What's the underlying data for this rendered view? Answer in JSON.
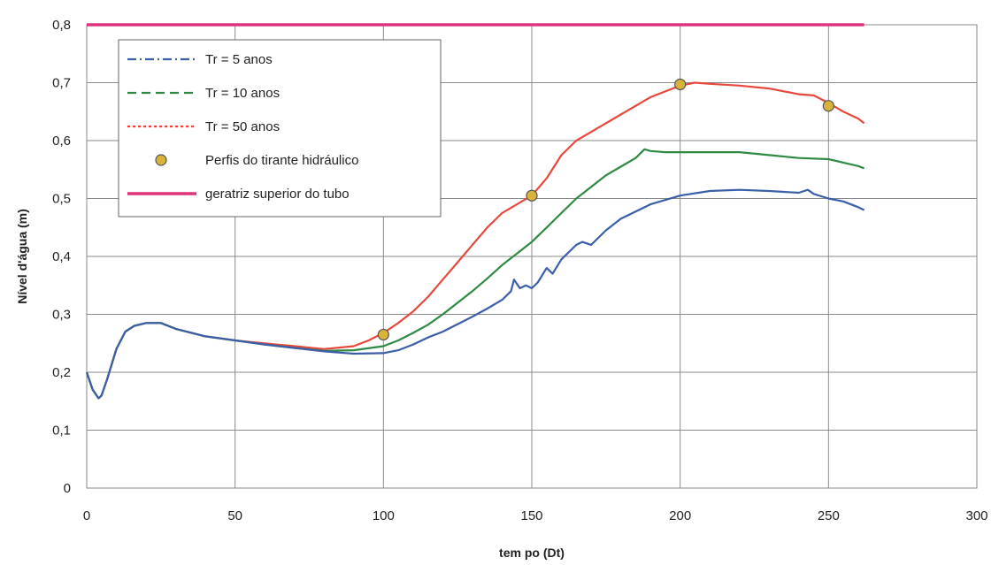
{
  "chart_data": {
    "type": "line",
    "title": "",
    "xlabel": "tem po (Dt)",
    "ylabel": "Nível d'água (m)",
    "xlim": [
      0,
      300
    ],
    "ylim": [
      0,
      0.8
    ],
    "x_ticks": [
      0,
      50,
      100,
      150,
      200,
      250,
      300
    ],
    "y_ticks": [
      0,
      0.1,
      0.2,
      0.3,
      0.4,
      0.5,
      0.6,
      0.7,
      0.8
    ],
    "x_tick_labels": [
      "0",
      "50",
      "100",
      "150",
      "200",
      "250",
      "300"
    ],
    "y_tick_labels": [
      "0",
      "0,1",
      "0,2",
      "0,3",
      "0,4",
      "0,5",
      "0,6",
      "0,7",
      "0,8"
    ],
    "grid": true,
    "legend_position": "top-left",
    "series": [
      {
        "name": "Tr = 5 anos",
        "color": "#3a5fa8",
        "style": "dash-dot",
        "x": [
          0,
          2,
          4,
          5,
          7,
          10,
          13,
          16,
          20,
          25,
          30,
          40,
          50,
          60,
          70,
          80,
          90,
          100,
          105,
          110,
          115,
          120,
          125,
          130,
          135,
          140,
          143,
          144,
          146,
          148,
          150,
          152,
          155,
          157,
          160,
          163,
          165,
          167,
          170,
          175,
          180,
          190,
          200,
          210,
          220,
          230,
          240,
          243,
          245,
          250,
          255,
          260,
          262
        ],
        "y": [
          0.2,
          0.17,
          0.155,
          0.16,
          0.19,
          0.24,
          0.27,
          0.28,
          0.285,
          0.285,
          0.275,
          0.262,
          0.255,
          0.248,
          0.242,
          0.236,
          0.232,
          0.233,
          0.238,
          0.248,
          0.26,
          0.27,
          0.283,
          0.296,
          0.31,
          0.325,
          0.34,
          0.36,
          0.345,
          0.35,
          0.345,
          0.355,
          0.38,
          0.37,
          0.395,
          0.41,
          0.42,
          0.425,
          0.42,
          0.445,
          0.465,
          0.49,
          0.505,
          0.513,
          0.515,
          0.513,
          0.51,
          0.515,
          0.508,
          0.5,
          0.495,
          0.485,
          0.48
        ]
      },
      {
        "name": "Tr = 10 anos",
        "color": "#2f8a44",
        "style": "dashed",
        "x": [
          0,
          2,
          4,
          5,
          7,
          10,
          13,
          16,
          20,
          25,
          30,
          40,
          50,
          60,
          70,
          80,
          90,
          100,
          105,
          110,
          115,
          120,
          125,
          130,
          135,
          140,
          145,
          150,
          155,
          160,
          165,
          170,
          175,
          180,
          185,
          188,
          190,
          195,
          200,
          210,
          220,
          230,
          240,
          250,
          255,
          260,
          262
        ],
        "y": [
          0.2,
          0.17,
          0.155,
          0.16,
          0.19,
          0.24,
          0.27,
          0.28,
          0.285,
          0.285,
          0.275,
          0.262,
          0.255,
          0.248,
          0.242,
          0.237,
          0.238,
          0.245,
          0.255,
          0.268,
          0.282,
          0.3,
          0.32,
          0.34,
          0.362,
          0.385,
          0.405,
          0.425,
          0.45,
          0.475,
          0.5,
          0.52,
          0.54,
          0.555,
          0.57,
          0.585,
          0.582,
          0.58,
          0.58,
          0.58,
          0.58,
          0.575,
          0.57,
          0.568,
          0.562,
          0.556,
          0.552
        ]
      },
      {
        "name": "Tr = 50 anos",
        "color": "#e8483c",
        "style": "dotted",
        "x": [
          0,
          2,
          4,
          5,
          7,
          10,
          13,
          16,
          20,
          25,
          30,
          40,
          50,
          60,
          70,
          80,
          90,
          95,
          100,
          105,
          110,
          115,
          120,
          125,
          130,
          135,
          140,
          145,
          150,
          155,
          160,
          165,
          170,
          180,
          190,
          200,
          205,
          210,
          220,
          230,
          240,
          245,
          250,
          255,
          260,
          262
        ],
        "y": [
          0.2,
          0.17,
          0.155,
          0.16,
          0.19,
          0.24,
          0.27,
          0.28,
          0.285,
          0.285,
          0.275,
          0.262,
          0.255,
          0.25,
          0.245,
          0.24,
          0.245,
          0.255,
          0.268,
          0.285,
          0.305,
          0.33,
          0.36,
          0.39,
          0.42,
          0.45,
          0.475,
          0.49,
          0.505,
          0.535,
          0.575,
          0.6,
          0.615,
          0.645,
          0.675,
          0.695,
          0.7,
          0.698,
          0.695,
          0.69,
          0.68,
          0.678,
          0.665,
          0.65,
          0.638,
          0.63
        ]
      },
      {
        "name": "Perfis do tirante hidráulico",
        "color": "#d9b23a",
        "style": "markers",
        "x": [
          100,
          150,
          200,
          250
        ],
        "y": [
          0.265,
          0.505,
          0.697,
          0.66
        ]
      },
      {
        "name": "geratriz superior do tubo",
        "color": "#e0337e",
        "style": "solid",
        "x": [
          0,
          262
        ],
        "y": [
          0.8,
          0.8
        ]
      }
    ]
  }
}
